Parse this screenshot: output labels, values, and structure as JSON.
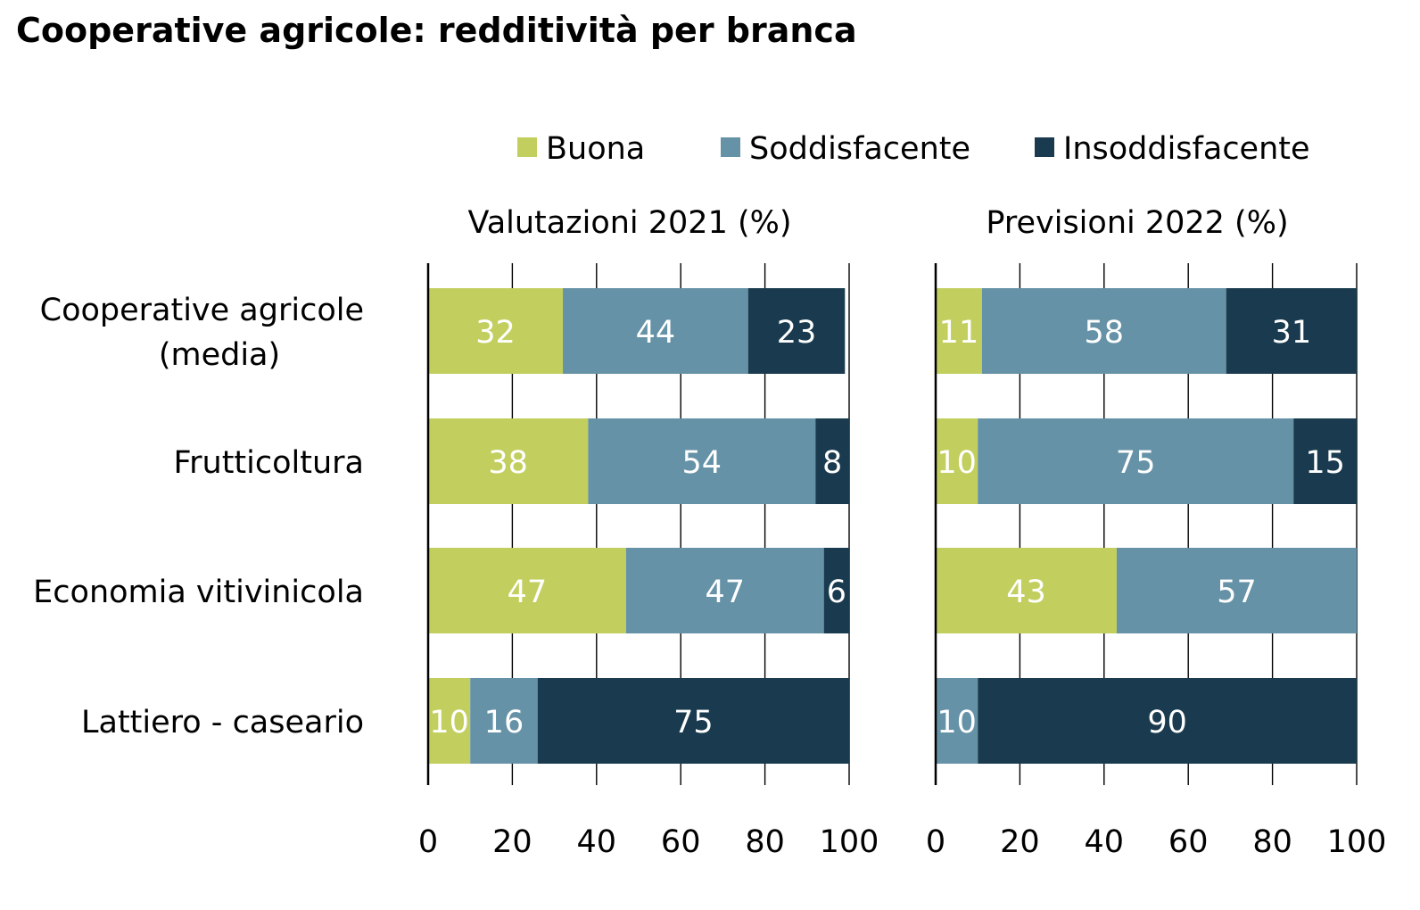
{
  "title": "Cooperative agricole: redditività per branca",
  "chart_data": [
    {
      "type": "bar",
      "orientation": "horizontal",
      "stacked": true,
      "title": "Valutazioni 2021 (%)",
      "categories": [
        "Cooperative agricole (media)",
        "Frutticoltura",
        "Economia vitivinicola",
        "Lattiero - caseario"
      ],
      "category_label_lines": [
        [
          "Cooperative agricole",
          "(media)"
        ],
        [
          "Frutticoltura"
        ],
        [
          "Economia vitivinicola"
        ],
        [
          "Lattiero - caseario"
        ]
      ],
      "series": [
        {
          "name": "Buona",
          "color": "#c2cf5f",
          "values": [
            32,
            38,
            47,
            10
          ]
        },
        {
          "name": "Soddisfacente",
          "color": "#6592a7",
          "values": [
            44,
            54,
            47,
            16
          ]
        },
        {
          "name": "Insoddisfacente",
          "color": "#1a3b4f",
          "values": [
            23,
            8,
            6,
            75
          ]
        }
      ],
      "xlim": [
        0,
        100
      ],
      "xticks": [
        "0",
        "20",
        "40",
        "60",
        "80",
        "100"
      ],
      "grid": true,
      "legend": "top"
    },
    {
      "type": "bar",
      "orientation": "horizontal",
      "stacked": true,
      "title": "Previsioni 2022 (%)",
      "categories": [
        "Cooperative agricole (media)",
        "Frutticoltura",
        "Economia vitivinicola",
        "Lattiero - caseario"
      ],
      "series": [
        {
          "name": "Buona",
          "color": "#c2cf5f",
          "values": [
            11,
            10,
            43,
            0
          ]
        },
        {
          "name": "Soddisfacente",
          "color": "#6592a7",
          "values": [
            58,
            75,
            57,
            10
          ]
        },
        {
          "name": "Insoddisfacente",
          "color": "#1a3b4f",
          "values": [
            31,
            15,
            0,
            90
          ]
        }
      ],
      "xlim": [
        0,
        100
      ],
      "xticks": [
        "0",
        "20",
        "40",
        "60",
        "80",
        "100"
      ],
      "grid": true,
      "legend": "top"
    }
  ]
}
